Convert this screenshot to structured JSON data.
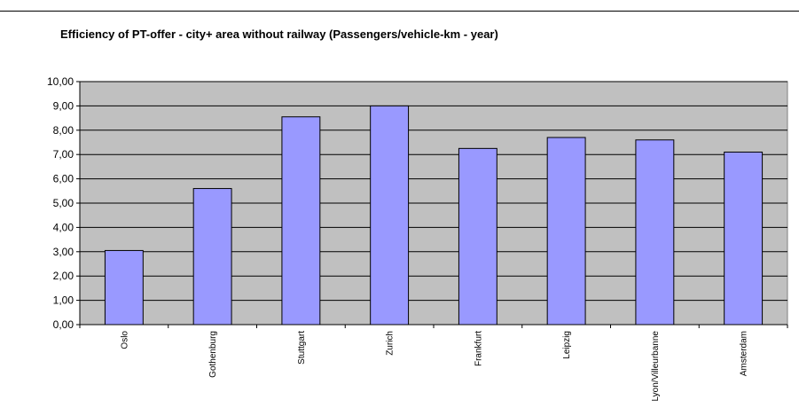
{
  "chart_data": {
    "type": "bar",
    "title": "Efficiency of PT-offer - city+ area without railway (Passengers/vehicle-km - year)",
    "xlabel": "",
    "ylabel": "",
    "categories": [
      "Oslo",
      "Gothenburg",
      "Stuttgart",
      "Zurich",
      "Frankfurt",
      "Leipzig",
      "Lyon/Villeurbanne",
      "Amsterdam"
    ],
    "values": [
      3.05,
      5.6,
      8.55,
      9.0,
      7.25,
      7.7,
      7.6,
      7.1
    ],
    "ylim": [
      0,
      10
    ],
    "yticks": [
      "0,00",
      "1,00",
      "2,00",
      "3,00",
      "4,00",
      "5,00",
      "6,00",
      "7,00",
      "8,00",
      "9,00",
      "10,00"
    ],
    "grid": true,
    "colors": {
      "plot_background": "#c0c0c0",
      "bar_fill": "#9999ff",
      "bar_stroke": "#000000",
      "gridline": "#000000"
    }
  }
}
